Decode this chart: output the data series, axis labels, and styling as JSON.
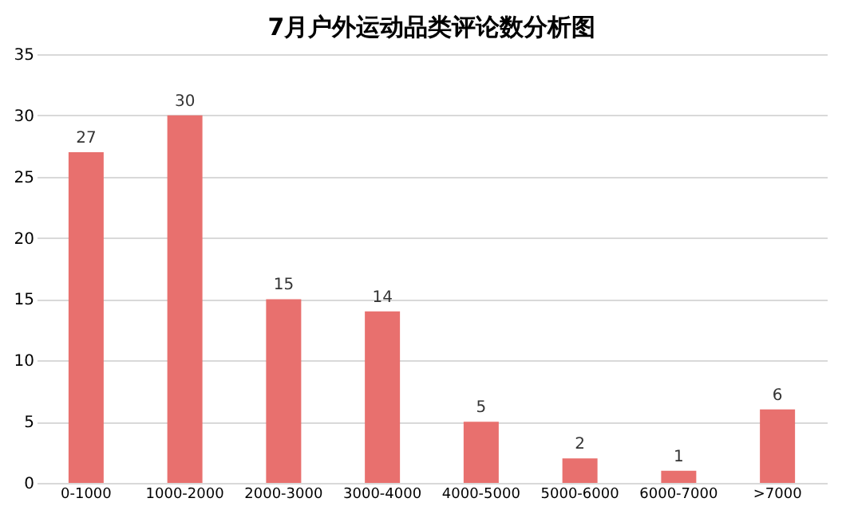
{
  "chart_data": {
    "type": "bar",
    "title": "7月户外运动品类评论数分析图",
    "categories": [
      "0-1000",
      "1000-2000",
      "2000-3000",
      "3000-4000",
      "4000-5000",
      "5000-6000",
      "6000-7000",
      ">7000"
    ],
    "values": [
      27,
      30,
      15,
      14,
      5,
      2,
      1,
      6
    ],
    "color": "#e8706e",
    "ylim": [
      0,
      35
    ],
    "yticks": [
      0,
      5,
      10,
      15,
      20,
      25,
      30,
      35
    ],
    "grid": "y",
    "data_labels": true
  }
}
